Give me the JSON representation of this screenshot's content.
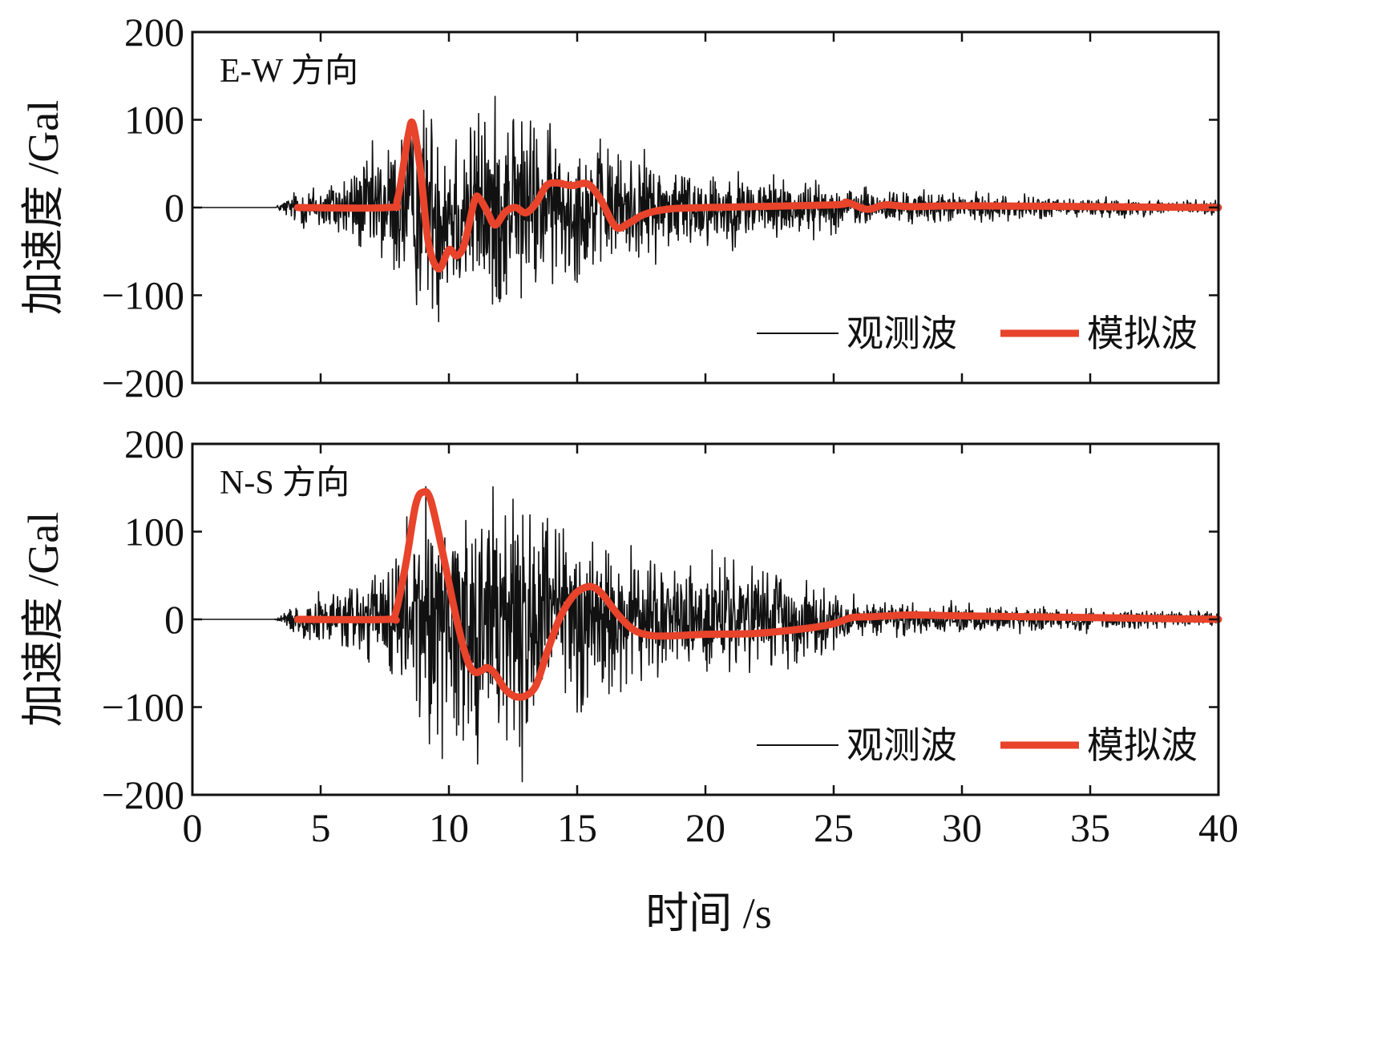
{
  "chart_data": [
    {
      "type": "line",
      "title": "E-W 方向",
      "xlabel": "时间 /s",
      "ylabel": "加速度 /Gal",
      "xlim": [
        0,
        40
      ],
      "ylim": [
        -200,
        200
      ],
      "xticks": [
        0,
        5,
        10,
        15,
        20,
        25,
        30,
        35,
        40
      ],
      "yticks": [
        200,
        100,
        0,
        -100,
        -200
      ],
      "ytick_labels": [
        "200",
        "100",
        "0",
        "−100",
        "−200"
      ],
      "legend_position": "bottom-right",
      "series": [
        {
          "name": "观测波",
          "color": "#111111",
          "style": "thin",
          "onset": 3.2,
          "envelope": [
            [
              0,
              0
            ],
            [
              3.2,
              0
            ],
            [
              4,
              12
            ],
            [
              6,
              25
            ],
            [
              8,
              55
            ],
            [
              9,
              75
            ],
            [
              10,
              70
            ],
            [
              11,
              70
            ],
            [
              12,
              75
            ],
            [
              13,
              68
            ],
            [
              14,
              55
            ],
            [
              16,
              45
            ],
            [
              18,
              35
            ],
            [
              20,
              28
            ],
            [
              23,
              22
            ],
            [
              26,
              14
            ],
            [
              30,
              10
            ],
            [
              35,
              7
            ],
            [
              40,
              5
            ]
          ],
          "peaks": [
            [
              9.6,
              -130
            ],
            [
              12.5,
              98
            ],
            [
              11.7,
              -110
            ]
          ]
        },
        {
          "name": "模拟波",
          "color": "#e8432b",
          "style": "thick",
          "points": [
            [
              4.1,
              0
            ],
            [
              7.6,
              0
            ],
            [
              8.0,
              10
            ],
            [
              8.4,
              80
            ],
            [
              8.6,
              95
            ],
            [
              8.9,
              40
            ],
            [
              9.2,
              -40
            ],
            [
              9.6,
              -70
            ],
            [
              10.0,
              -48
            ],
            [
              10.3,
              -55
            ],
            [
              10.6,
              -42
            ],
            [
              11.0,
              8
            ],
            [
              11.2,
              10
            ],
            [
              11.5,
              -5
            ],
            [
              11.8,
              -20
            ],
            [
              12.2,
              -5
            ],
            [
              12.6,
              0
            ],
            [
              13.0,
              -6
            ],
            [
              13.4,
              5
            ],
            [
              13.8,
              25
            ],
            [
              14.2,
              28
            ],
            [
              14.8,
              25
            ],
            [
              15.4,
              27
            ],
            [
              15.9,
              10
            ],
            [
              16.5,
              -22
            ],
            [
              17.0,
              -18
            ],
            [
              17.6,
              -8
            ],
            [
              18.5,
              -2
            ],
            [
              20,
              0
            ],
            [
              25,
              3
            ],
            [
              25.5,
              6
            ],
            [
              26.3,
              -2
            ],
            [
              27,
              3
            ],
            [
              28,
              1
            ],
            [
              30,
              2
            ],
            [
              35,
              1
            ],
            [
              40,
              0
            ]
          ]
        }
      ]
    },
    {
      "type": "line",
      "title": "N-S 方向",
      "xlabel": "时间 /s",
      "ylabel": "加速度 /Gal",
      "xlim": [
        0,
        40
      ],
      "ylim": [
        -200,
        200
      ],
      "xticks": [
        0,
        5,
        10,
        15,
        20,
        25,
        30,
        35,
        40
      ],
      "yticks": [
        200,
        100,
        0,
        -100,
        -200
      ],
      "ytick_labels": [
        "200",
        "100",
        "0",
        "−100",
        "−200"
      ],
      "legend_position": "bottom-right",
      "series": [
        {
          "name": "观测波",
          "color": "#111111",
          "style": "thin",
          "onset": 3.2,
          "envelope": [
            [
              0,
              0
            ],
            [
              3.2,
              0
            ],
            [
              4,
              10
            ],
            [
              6,
              25
            ],
            [
              8,
              50
            ],
            [
              9,
              85
            ],
            [
              10,
              90
            ],
            [
              11,
              95
            ],
            [
              12,
              100
            ],
            [
              13,
              95
            ],
            [
              14,
              80
            ],
            [
              15,
              70
            ],
            [
              16,
              55
            ],
            [
              18,
              45
            ],
            [
              20,
              40
            ],
            [
              23,
              32
            ],
            [
              25,
              20
            ],
            [
              26,
              12
            ],
            [
              30,
              10
            ],
            [
              35,
              8
            ],
            [
              40,
              5
            ]
          ],
          "peaks": [
            [
              12.85,
              -185
            ],
            [
              12.2,
              118
            ],
            [
              15.6,
              88
            ]
          ]
        },
        {
          "name": "模拟波",
          "color": "#e8432b",
          "style": "thick",
          "points": [
            [
              4.1,
              0
            ],
            [
              7.6,
              0
            ],
            [
              7.9,
              5
            ],
            [
              8.3,
              60
            ],
            [
              8.7,
              130
            ],
            [
              9.0,
              145
            ],
            [
              9.3,
              135
            ],
            [
              9.8,
              70
            ],
            [
              10.3,
              0
            ],
            [
              10.7,
              -45
            ],
            [
              11.0,
              -60
            ],
            [
              11.3,
              -58
            ],
            [
              11.5,
              -55
            ],
            [
              11.8,
              -62
            ],
            [
              12.2,
              -80
            ],
            [
              12.6,
              -88
            ],
            [
              13.0,
              -87
            ],
            [
              13.4,
              -75
            ],
            [
              13.8,
              -40
            ],
            [
              14.3,
              0
            ],
            [
              14.8,
              25
            ],
            [
              15.2,
              35
            ],
            [
              15.6,
              37
            ],
            [
              16.0,
              28
            ],
            [
              16.6,
              5
            ],
            [
              17.2,
              -12
            ],
            [
              17.8,
              -18
            ],
            [
              18.5,
              -19
            ],
            [
              20,
              -17
            ],
            [
              22,
              -16
            ],
            [
              24,
              -10
            ],
            [
              25.0,
              -5
            ],
            [
              25.7,
              2
            ],
            [
              26.5,
              3
            ],
            [
              28,
              5
            ],
            [
              30,
              4
            ],
            [
              35,
              2
            ],
            [
              40,
              0
            ]
          ]
        }
      ]
    }
  ]
}
